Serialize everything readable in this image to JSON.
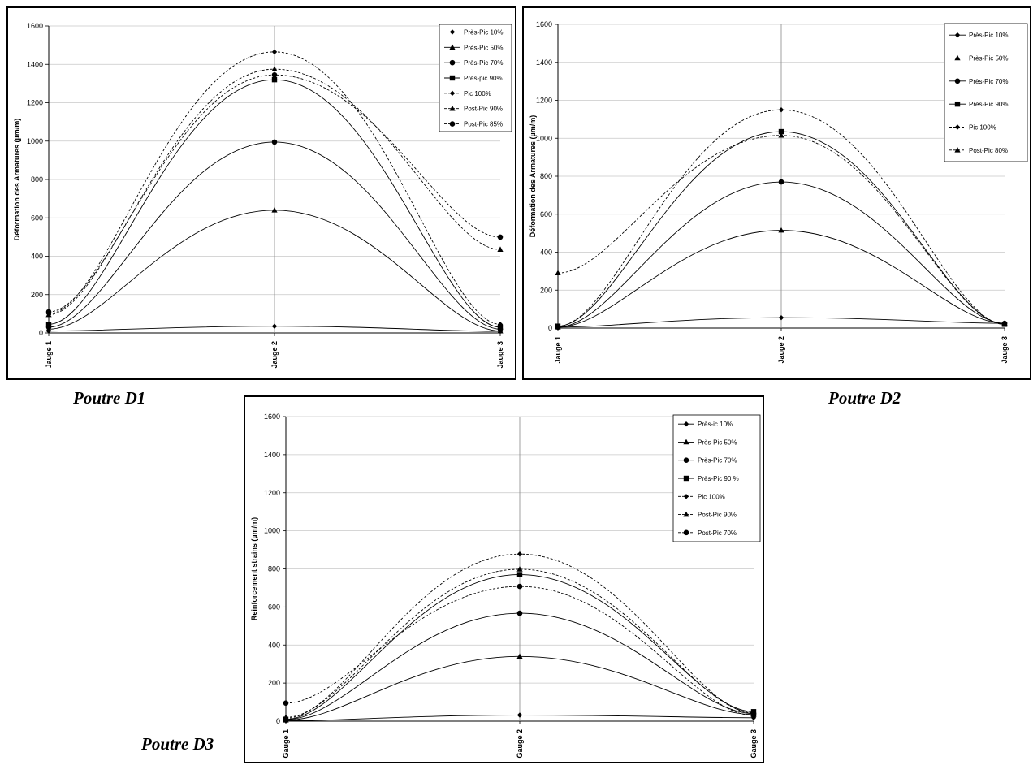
{
  "captions": [
    "Poutre D1",
    "Poutre D2",
    "Poutre D3"
  ],
  "chart_data": [
    {
      "type": "line",
      "ylabel": "Déformation des Armatures (µm/m)",
      "categories": [
        "Jauge 1",
        "Jauge 2",
        "Jauge 3"
      ],
      "ylim": [
        0,
        1600
      ],
      "yticks": [
        "0",
        "200",
        "400",
        "600",
        "800",
        "1000",
        "1200",
        "1400",
        "1600"
      ],
      "grid": true,
      "legend": "top-right",
      "series": [
        {
          "name": "Près-Pic 10%",
          "values": [
            10,
            35,
            8
          ],
          "marker": "diamond",
          "dash": false
        },
        {
          "name": "Près-Pic 50%",
          "values": [
            20,
            640,
            10
          ],
          "marker": "triangle",
          "dash": false
        },
        {
          "name": "Près-Pic 70%",
          "values": [
            30,
            995,
            20
          ],
          "marker": "circle",
          "dash": false
        },
        {
          "name": "Près-pic 90%",
          "values": [
            45,
            1320,
            30
          ],
          "marker": "square",
          "dash": false
        },
        {
          "name": "Pic 100%",
          "values": [
            100,
            1465,
            45
          ],
          "marker": "diamond",
          "dash": true
        },
        {
          "name": "Post-Pic 90%",
          "values": [
            95,
            1375,
            435
          ],
          "marker": "triangle",
          "dash": true
        },
        {
          "name": "Post-Pic 85%",
          "values": [
            110,
            1345,
            500
          ],
          "marker": "circle",
          "dash": true
        }
      ]
    },
    {
      "type": "line",
      "ylabel": "Déformation des Armatures (µm/m)",
      "categories": [
        "Jauge 1",
        "Jauge 2",
        "Jauge 3"
      ],
      "ylim": [
        0,
        1600
      ],
      "yticks": [
        "0",
        "200",
        "400",
        "600",
        "800",
        "1000",
        "1200",
        "1400",
        "1600"
      ],
      "grid": true,
      "legend": "top-right",
      "series": [
        {
          "name": "Près-Pic 10%",
          "values": [
            5,
            55,
            25
          ],
          "marker": "diamond",
          "dash": false
        },
        {
          "name": "Près-Pic 50%",
          "values": [
            5,
            515,
            25
          ],
          "marker": "triangle",
          "dash": false
        },
        {
          "name": "Près-Pic 70%",
          "values": [
            5,
            770,
            25
          ],
          "marker": "circle",
          "dash": false
        },
        {
          "name": "Près-Pic 90%",
          "values": [
            10,
            1035,
            20
          ],
          "marker": "square",
          "dash": false
        },
        {
          "name": "Pic 100%",
          "values": [
            10,
            1150,
            20
          ],
          "marker": "diamond",
          "dash": true
        },
        {
          "name": "Post-Pic 80%",
          "values": [
            290,
            1015,
            20
          ],
          "marker": "triangle",
          "dash": true
        }
      ]
    },
    {
      "type": "line",
      "ylabel": "Reinforcement strains (µm/m)",
      "categories": [
        "Gauge 1",
        "Gauge 2",
        "Gauge 3"
      ],
      "ylim": [
        0,
        1600
      ],
      "yticks": [
        "0",
        "200",
        "400",
        "600",
        "800",
        "1000",
        "1200",
        "1400",
        "1600"
      ],
      "grid": true,
      "legend": "top-right",
      "series": [
        {
          "name": "Près-ic 10%",
          "values": [
            2,
            32,
            18
          ],
          "marker": "diamond",
          "dash": false
        },
        {
          "name": "Près-Pic 50%",
          "values": [
            5,
            340,
            35
          ],
          "marker": "triangle",
          "dash": false
        },
        {
          "name": "Près-Pic 70%",
          "values": [
            8,
            567,
            40
          ],
          "marker": "circle",
          "dash": false
        },
        {
          "name": "Près-Pic 90 %",
          "values": [
            10,
            770,
            50
          ],
          "marker": "square",
          "dash": false
        },
        {
          "name": "Pic 100%",
          "values": [
            15,
            878,
            42
          ],
          "marker": "diamond",
          "dash": true
        },
        {
          "name": "Post-Pic 90%",
          "values": [
            20,
            798,
            45
          ],
          "marker": "triangle",
          "dash": true
        },
        {
          "name": "Post-Pic 70%",
          "values": [
            95,
            708,
            30
          ],
          "marker": "circle",
          "dash": true
        }
      ]
    }
  ]
}
